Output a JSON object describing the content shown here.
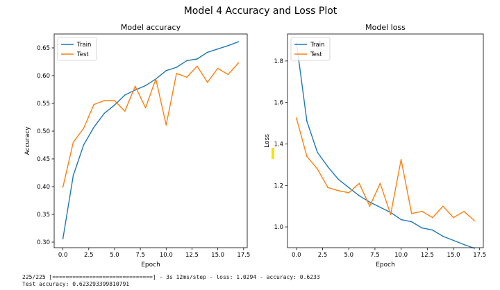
{
  "figure": {
    "suptitle": "Model 4 Accuracy and Loss Plot",
    "console_lines": [
      "225/225 [==============================] - 3s 12ms/step - loss: 1.0294 - accuracy: 0.6233",
      "Test accuracy: 0.623293399810791"
    ]
  },
  "chart_data": [
    {
      "type": "line",
      "title": "Model accuracy",
      "xlabel": "Epoch",
      "ylabel": "Accuracy",
      "xlim": [
        -0.85,
        17.85
      ],
      "ylim": [
        0.29,
        0.675
      ],
      "xticks": [
        0.0,
        2.5,
        5.0,
        7.5,
        10.0,
        12.5,
        15.0,
        17.5
      ],
      "xtick_labels": [
        "0.0",
        "2.5",
        "5.0",
        "7.5",
        "10.0",
        "12.5",
        "15.0",
        "17.5"
      ],
      "yticks": [
        0.3,
        0.35,
        0.4,
        0.45,
        0.5,
        0.55,
        0.6,
        0.65
      ],
      "ytick_labels": [
        "0.30",
        "0.35",
        "0.40",
        "0.45",
        "0.50",
        "0.55",
        "0.60",
        "0.65"
      ],
      "legend_position": "upper-left",
      "x": [
        0,
        1,
        2,
        3,
        4,
        5,
        6,
        7,
        8,
        9,
        10,
        11,
        12,
        13,
        14,
        15,
        16,
        17
      ],
      "series": [
        {
          "name": "Train",
          "color": "#1f77b4",
          "values": [
            0.306,
            0.42,
            0.475,
            0.507,
            0.532,
            0.547,
            0.565,
            0.574,
            0.582,
            0.594,
            0.609,
            0.615,
            0.627,
            0.63,
            0.642,
            0.648,
            0.654,
            0.661
          ]
        },
        {
          "name": "Test",
          "color": "#ff7f0e",
          "values": [
            0.399,
            0.48,
            0.505,
            0.548,
            0.555,
            0.555,
            0.536,
            0.581,
            0.542,
            0.594,
            0.511,
            0.604,
            0.597,
            0.617,
            0.588,
            0.613,
            0.602,
            0.623
          ]
        }
      ]
    },
    {
      "type": "line",
      "title": "Model loss",
      "xlabel": "Epoch",
      "ylabel": "Loss",
      "xlim": [
        -0.85,
        17.85
      ],
      "ylim": [
        0.9,
        1.93
      ],
      "xticks": [
        0.0,
        2.5,
        5.0,
        7.5,
        10.0,
        12.5,
        15.0,
        17.5
      ],
      "xtick_labels": [
        "0.0",
        "2.5",
        "5.0",
        "7.5",
        "10.0",
        "12.5",
        "15.0",
        "17.5"
      ],
      "yticks": [
        1.0,
        1.2,
        1.4,
        1.6,
        1.8
      ],
      "ytick_labels": [
        "1.0",
        "1.2",
        "1.4",
        "1.6",
        "1.8"
      ],
      "legend_position": "upper-left",
      "x": [
        0,
        1,
        2,
        3,
        4,
        5,
        6,
        7,
        8,
        9,
        10,
        11,
        12,
        13,
        14,
        15,
        16,
        17
      ],
      "series": [
        {
          "name": "Train",
          "color": "#1f77b4",
          "values": [
            1.89,
            1.51,
            1.36,
            1.29,
            1.23,
            1.19,
            1.15,
            1.12,
            1.095,
            1.07,
            1.035,
            1.025,
            0.995,
            0.985,
            0.955,
            0.935,
            0.915,
            0.897
          ]
        },
        {
          "name": "Test",
          "color": "#ff7f0e",
          "values": [
            1.525,
            1.34,
            1.28,
            1.19,
            1.175,
            1.165,
            1.21,
            1.1,
            1.21,
            1.06,
            1.325,
            1.065,
            1.075,
            1.045,
            1.1,
            1.045,
            1.075,
            1.03
          ]
        }
      ]
    }
  ]
}
